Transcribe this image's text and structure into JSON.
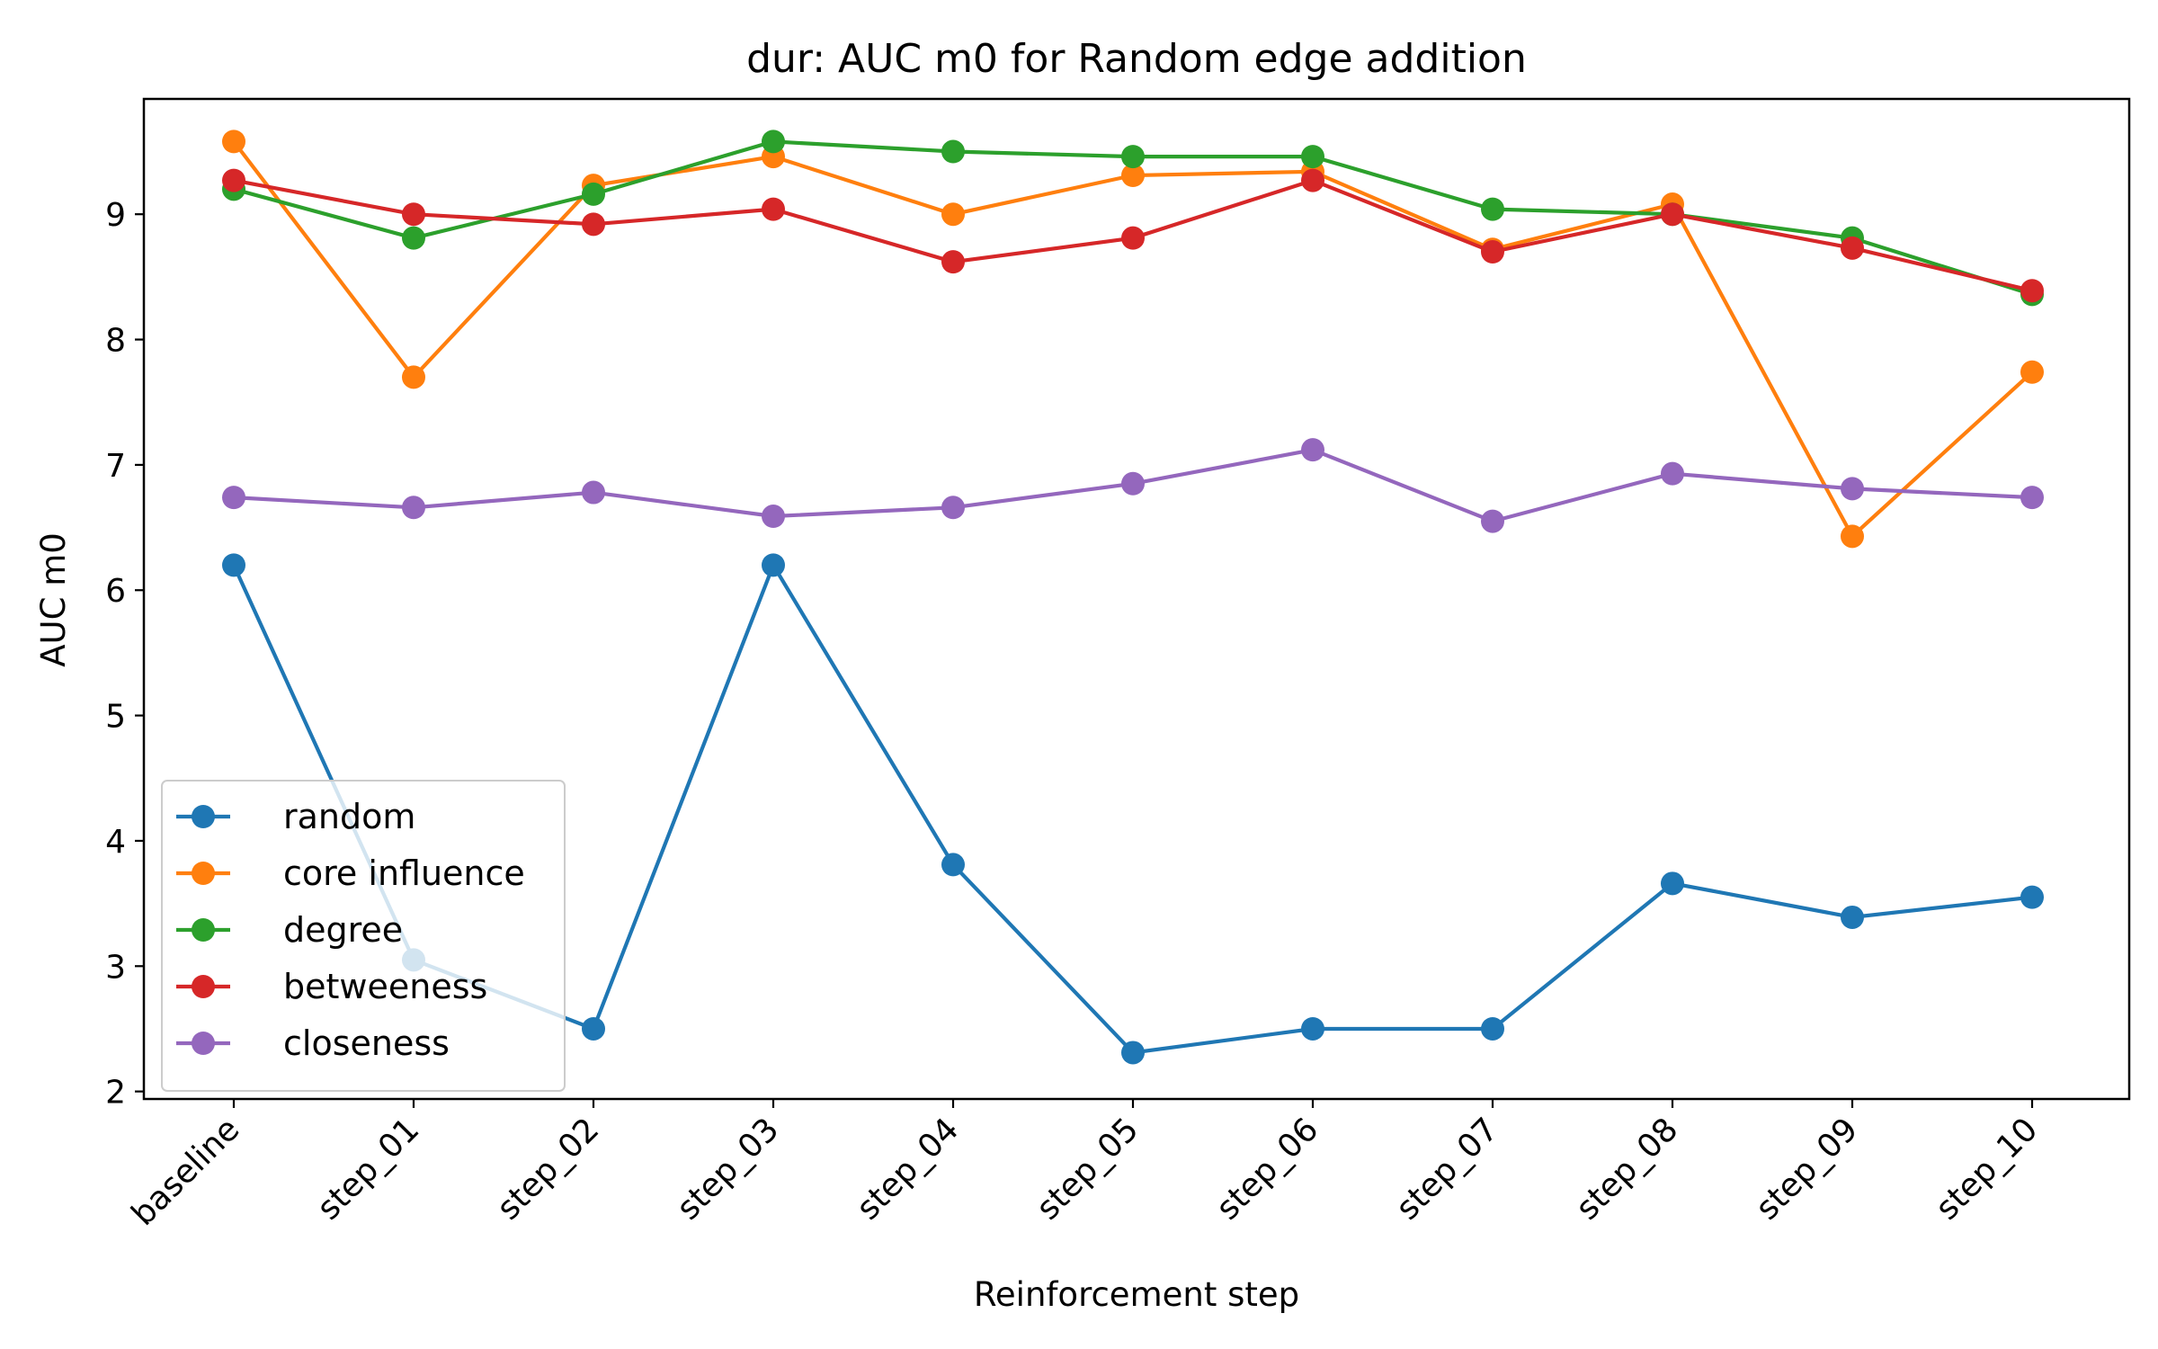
{
  "chart_data": {
    "type": "line",
    "title": "dur: AUC m0 for Random edge addition",
    "xlabel": "Reinforcement step",
    "ylabel": "AUC m0",
    "categories": [
      "baseline",
      "step_01",
      "step_02",
      "step_03",
      "step_04",
      "step_05",
      "step_06",
      "step_07",
      "step_08",
      "step_09",
      "step_10"
    ],
    "yticks": [
      "2",
      "3",
      "4",
      "5",
      "6",
      "7",
      "8",
      "9"
    ],
    "ylim": [
      1.94,
      9.92
    ],
    "grid": false,
    "legend_position": "lower-left",
    "series": [
      {
        "name": "random",
        "color": "#1f77b4",
        "values": [
          6.2,
          3.05,
          2.5,
          6.2,
          3.81,
          2.31,
          2.5,
          2.5,
          3.66,
          3.39,
          3.55
        ]
      },
      {
        "name": "core influence",
        "color": "#ff7f0e",
        "values": [
          9.58,
          7.7,
          9.23,
          9.46,
          9.0,
          9.31,
          9.34,
          8.72,
          9.08,
          6.43,
          7.74
        ]
      },
      {
        "name": "degree",
        "color": "#2ca02c",
        "values": [
          9.2,
          8.81,
          9.16,
          9.58,
          9.5,
          9.46,
          9.46,
          9.04,
          9.0,
          8.81,
          8.36
        ]
      },
      {
        "name": "betweeness",
        "color": "#d62728",
        "values": [
          9.27,
          9.0,
          8.92,
          9.04,
          8.62,
          8.81,
          9.27,
          8.7,
          9.0,
          8.73,
          8.39
        ]
      },
      {
        "name": "closeness",
        "color": "#9467bd",
        "values": [
          6.74,
          6.66,
          6.78,
          6.59,
          6.66,
          6.85,
          7.12,
          6.55,
          6.93,
          6.81,
          6.74
        ]
      }
    ]
  }
}
